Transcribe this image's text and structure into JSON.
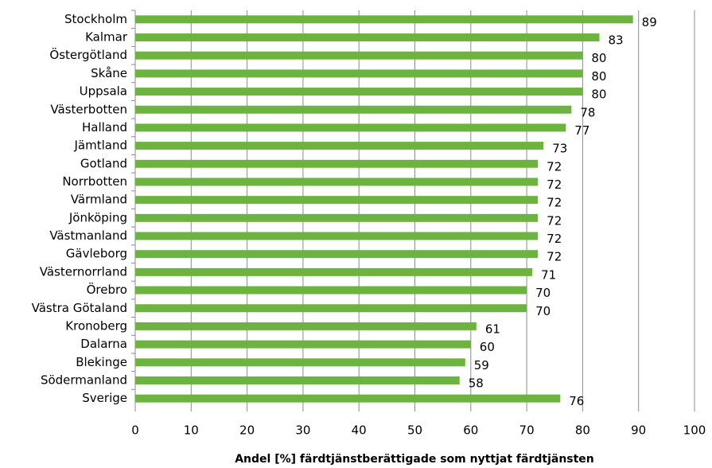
{
  "chart_data": {
    "type": "bar",
    "orientation": "horizontal",
    "x_label": "Andel [%]  färdtjänstberättigade som nyttjat färdtjänsten",
    "categories": [
      "Stockholm",
      "Kalmar",
      "Östergötland",
      "Skåne",
      "Uppsala",
      "Västerbotten",
      "Halland",
      "Jämtland",
      "Gotland",
      "Norrbotten",
      "Värmland",
      "Jönköping",
      "Västmanland",
      "Gävleborg",
      "Västernorrland",
      "Örebro",
      "Västra Götaland",
      "Kronoberg",
      "Dalarna",
      "Blekinge",
      "Södermanland",
      "Sverige"
    ],
    "values": [
      89,
      83,
      80,
      80,
      80,
      78,
      77,
      73,
      72,
      72,
      72,
      72,
      72,
      72,
      71,
      70,
      70,
      61,
      60,
      59,
      58,
      76
    ],
    "color": "#6db33f",
    "xlim": [
      0,
      100
    ],
    "xticks": [
      0,
      10,
      20,
      30,
      40,
      50,
      60,
      70,
      80,
      90,
      100
    ],
    "grid": true
  }
}
